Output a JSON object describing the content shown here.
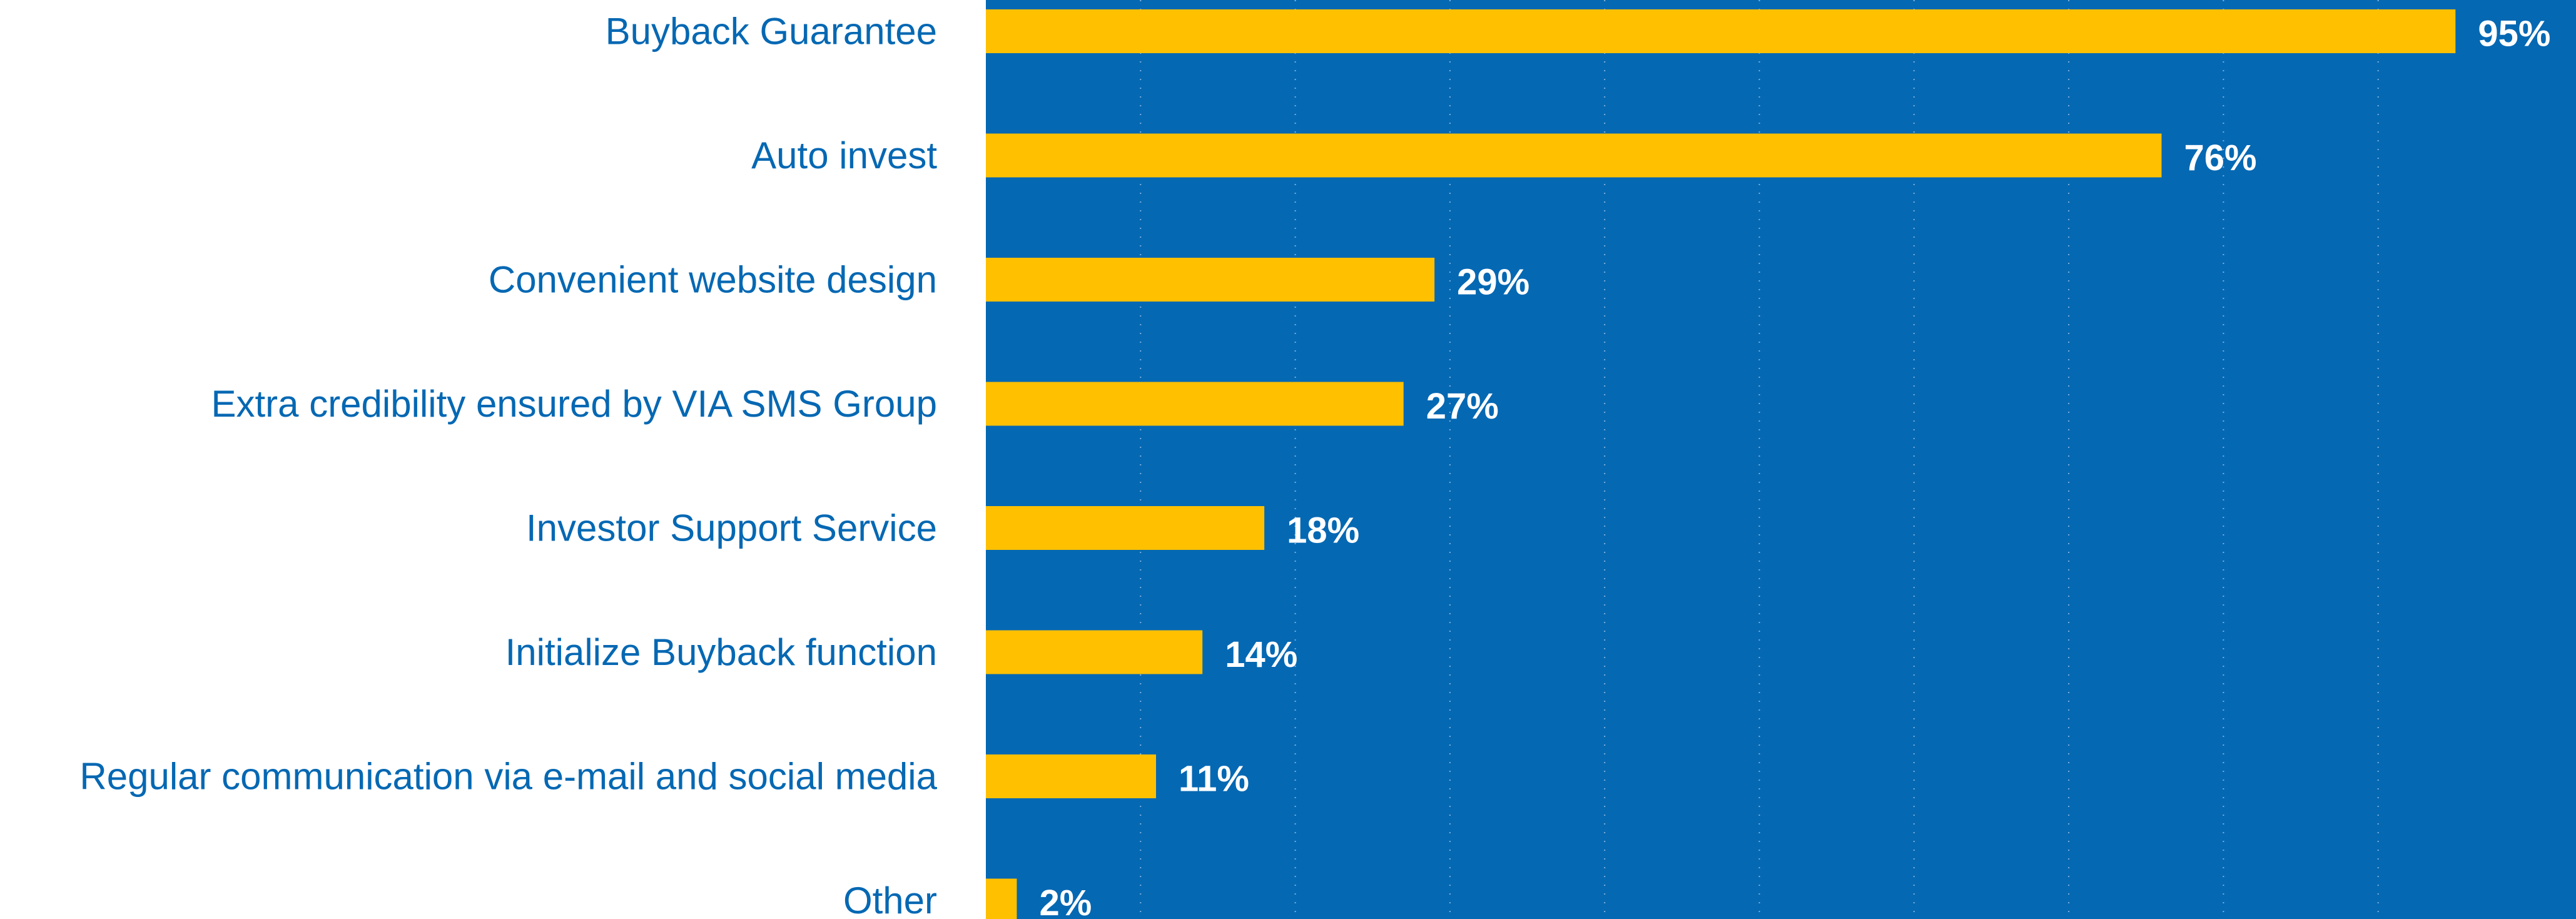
{
  "chart_data": {
    "type": "bar",
    "orientation": "horizontal",
    "title": "",
    "xlabel": "",
    "ylabel": "",
    "categories": [
      "Buyback Guarantee",
      "Auto invest",
      "Convenient website design",
      "Extra credibility ensured by VIA SMS Group",
      "Investor Support Service",
      "Initialize Buyback function",
      "Regular communication via e-mail and social media",
      "Other"
    ],
    "values": [
      95,
      76,
      29,
      27,
      18,
      14,
      11,
      2
    ],
    "value_labels": [
      "95%",
      "76%",
      "29%",
      "27%",
      "18%",
      "14%",
      "11%",
      "2%"
    ],
    "xlim": [
      0,
      100
    ],
    "grid": true,
    "legend": "none",
    "colors": {
      "bar": "#FFC000",
      "plot_background": "#0568B3",
      "category_text": "#0568B3",
      "value_text": "#FFFFFF",
      "grid": "#7FB0DA"
    }
  }
}
